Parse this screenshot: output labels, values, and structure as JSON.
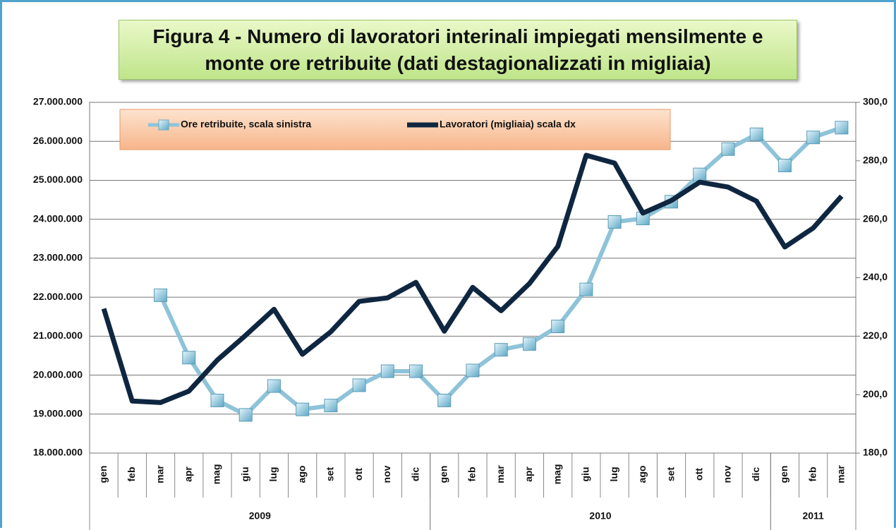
{
  "chart_data": {
    "type": "line",
    "title": "Figura 4 - Numero di lavoratori interinali impiegati mensilmente e monte ore retribuite (dati destagionalizzati in migliaia)",
    "categories": [
      "gen",
      "feb",
      "mar",
      "apr",
      "mag",
      "giu",
      "lug",
      "ago",
      "set",
      "ott",
      "nov",
      "dic",
      "gen",
      "feb",
      "mar",
      "apr",
      "mag",
      "giu",
      "lug",
      "ago",
      "set",
      "ott",
      "nov",
      "dic",
      "gen",
      "feb",
      "mar"
    ],
    "x_groups": [
      {
        "label": "2009",
        "count": 12
      },
      {
        "label": "2010",
        "count": 12
      },
      {
        "label": "2011",
        "count": 3
      }
    ],
    "series": [
      {
        "name": "Ore retribuite, scala sinistra",
        "color": "#8ec3d9",
        "marker": "square",
        "values": [
          null,
          null,
          22050000,
          20450000,
          19350000,
          18980000,
          19720000,
          19120000,
          19220000,
          19740000,
          20100000,
          20100000,
          19350000,
          20120000,
          20650000,
          20800000,
          21250000,
          22200000,
          23930000,
          24020000,
          24450000,
          25150000,
          25800000,
          26180000,
          25380000,
          26100000,
          26350000
        ]
      },
      {
        "name": "Lavoratori (migliaia) scala dx",
        "color": "#0f2640",
        "axis": "y2",
        "values": [
          229.4,
          197.8,
          197.3,
          201.2,
          211.8,
          220.3,
          229.2,
          213.8,
          221.5,
          231.9,
          233.1,
          238.4,
          221.7,
          236.7,
          228.7,
          238.0,
          250.7,
          281.9,
          279.2,
          262.1,
          266.4,
          272.7,
          271.0,
          266.2,
          250.5,
          257.0,
          267.9
        ]
      }
    ],
    "ylim": [
      18000000,
      27000000
    ],
    "yticks": [
      {
        "value": 18000000,
        "label": "18.000.000"
      },
      {
        "value": 19000000,
        "label": "19.000.000"
      },
      {
        "value": 20000000,
        "label": "20.000.000"
      },
      {
        "value": 21000000,
        "label": "21.000.000"
      },
      {
        "value": 22000000,
        "label": "22.000.000"
      },
      {
        "value": 23000000,
        "label": "23.000.000"
      },
      {
        "value": 24000000,
        "label": "24.000.000"
      },
      {
        "value": 25000000,
        "label": "25.000.000"
      },
      {
        "value": 26000000,
        "label": "26.000.000"
      },
      {
        "value": 27000000,
        "label": "27.000.000"
      }
    ],
    "y2lim": [
      180,
      300
    ],
    "y2ticks": [
      {
        "value": 180,
        "label": "180,0"
      },
      {
        "value": 200,
        "label": "200,0"
      },
      {
        "value": 220,
        "label": "220,0"
      },
      {
        "value": 240,
        "label": "240,0"
      },
      {
        "value": 260,
        "label": "260,0"
      },
      {
        "value": 280,
        "label": "280,0"
      },
      {
        "value": 300,
        "label": "300,0"
      }
    ],
    "grid": true,
    "legend": "top"
  }
}
